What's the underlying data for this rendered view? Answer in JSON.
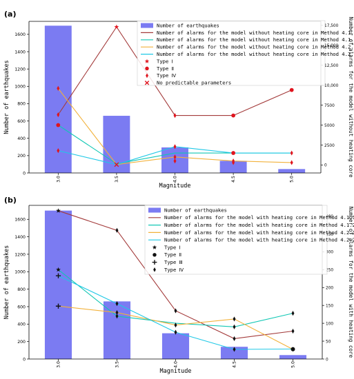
{
  "panels": [
    {
      "panel_label": "(a)",
      "chart_data": {
        "type": "bar",
        "categories": [
          "3.0",
          "3.5",
          "4.0",
          "4.5",
          "5.0"
        ],
        "xlabel": "Magnitude",
        "ylabel": "Number of earthquakes",
        "ylabel_right": "Number of alarms for the model without heating core",
        "ylim": [
          0,
          1750
        ],
        "yticks": [
          0,
          200,
          400,
          600,
          800,
          1000,
          1200,
          1400,
          1600
        ],
        "ylim_right": [
          -1000,
          18000
        ],
        "yticks_right": [
          0,
          2500,
          5000,
          7500,
          10000,
          12500,
          15000,
          17500
        ],
        "ytick_labels_right": [
          "0",
          "2500",
          "5000",
          "7500",
          "10,000",
          "12,500",
          "15,000",
          "17,500"
        ],
        "legend_position": "top-right",
        "bars": {
          "name": "Number of earthquakes",
          "values": [
            1700,
            660,
            295,
            140,
            45
          ],
          "color": "#7b7bf2"
        },
        "series": [
          {
            "name": "Number of alarms for the model without heating core in Method 4.1.1",
            "color": "#a33a3a",
            "values": [
              6300,
              17300,
              6200,
              6200,
              9400
            ]
          },
          {
            "name": "Number of alarms for the model without heating core in Method 4.1.2",
            "color": "#10c7b4",
            "values": [
              5000,
              150,
              1500,
              1500,
              1500
            ]
          },
          {
            "name": "Number of alarms for the model without heating core in Method 4.2.1",
            "color": "#f2b13a",
            "values": [
              9600,
              50,
              1000,
              500,
              300
            ]
          },
          {
            "name": "Number of alarms for the model without heating core in Method 4.2.2",
            "color": "#1ec8e6",
            "values": [
              1800,
              50,
              2300,
              1500,
              1500
            ]
          }
        ],
        "markers": [
          {
            "name": "Type Ⅰ",
            "symbol": "star",
            "color": "#e0141e"
          },
          {
            "name": "Type Ⅱ",
            "symbol": "circle",
            "color": "#e0141e"
          },
          {
            "name": "Type Ⅳ",
            "symbol": "diamond",
            "color": "#e0141e"
          },
          {
            "name": "No predictable parameters",
            "symbol": "x",
            "color": "#e0141e"
          }
        ],
        "points": [
          {
            "x": "3.0",
            "y": 6300,
            "symbol": "diamond"
          },
          {
            "x": "3.0",
            "y": 5000,
            "symbol": "circle"
          },
          {
            "x": "3.0",
            "y": 9600,
            "symbol": "diamond"
          },
          {
            "x": "3.0",
            "y": 1800,
            "symbol": "diamond"
          },
          {
            "x": "3.5",
            "y": 17300,
            "symbol": "star"
          },
          {
            "x": "3.5",
            "y": 50,
            "symbol": "x"
          },
          {
            "x": "4.0",
            "y": 6200,
            "symbol": "diamond"
          },
          {
            "x": "4.0",
            "y": 2300,
            "symbol": "diamond"
          },
          {
            "x": "4.0",
            "y": 1000,
            "symbol": "diamond"
          },
          {
            "x": "4.0",
            "y": 500,
            "symbol": "diamond"
          },
          {
            "x": "4.5",
            "y": 6200,
            "symbol": "circle"
          },
          {
            "x": "4.5",
            "y": 1500,
            "symbol": "circle"
          },
          {
            "x": "4.5",
            "y": 500,
            "symbol": "diamond"
          },
          {
            "x": "4.5",
            "y": 300,
            "symbol": "diamond"
          },
          {
            "x": "5.0",
            "y": 9400,
            "symbol": "circle"
          },
          {
            "x": "5.0",
            "y": 1500,
            "symbol": "diamond"
          },
          {
            "x": "5.0",
            "y": 300,
            "symbol": "diamond"
          }
        ]
      }
    },
    {
      "panel_label": "(b)",
      "chart_data": {
        "type": "bar",
        "categories": [
          "3.0",
          "3.5",
          "4.0",
          "4.5",
          "5.0"
        ],
        "xlabel": "Magnitude",
        "ylabel": "Number of earthquakes",
        "ylabel_right": "Number of alarms for the model with heating core",
        "ylim": [
          0,
          1760
        ],
        "yticks": [
          0,
          200,
          400,
          600,
          800,
          1000,
          1200,
          1400,
          1600
        ],
        "ylim_right": [
          0,
          430
        ],
        "yticks_right": [
          0,
          50,
          100,
          150,
          200,
          250,
          300,
          350,
          400
        ],
        "ytick_labels_right": [
          "0",
          "50",
          "100",
          "150",
          "200",
          "250",
          "300",
          "350",
          "400"
        ],
        "legend_position": "top-right",
        "bars": {
          "name": "Number of earthquakes",
          "values": [
            1700,
            660,
            295,
            140,
            45
          ],
          "color": "#7b7bf2"
        },
        "series": [
          {
            "name": "Number of alarms for the model with heating core in Method 4.1.1",
            "color": "#a33a3a",
            "values": [
              415,
              360,
              135,
              57,
              78
            ]
          },
          {
            "name": "Number of alarms for the model with heating core in Method 4.1.2",
            "color": "#10c7b4",
            "values": [
              250,
              120,
              100,
              90,
              128
            ]
          },
          {
            "name": "Number of alarms for the model with heating core in Method 4.2.1",
            "color": "#f2b13a",
            "values": [
              148,
              130,
              95,
              112,
              27
            ]
          },
          {
            "name": "Number of alarms for the model with heating core in Method 4.2.2",
            "color": "#1ec8e6",
            "values": [
              233,
              155,
              75,
              27,
              28
            ]
          }
        ],
        "markers": [
          {
            "name": "Type Ⅰ",
            "symbol": "star",
            "color": "#111111"
          },
          {
            "name": "Type Ⅱ",
            "symbol": "circle",
            "color": "#111111"
          },
          {
            "name": "Type Ⅲ",
            "symbol": "plus",
            "color": "#111111"
          },
          {
            "name": "Type Ⅳ",
            "symbol": "diamond",
            "color": "#111111"
          }
        ],
        "points": [
          {
            "x": "3.0",
            "y": 415,
            "symbol": "star"
          },
          {
            "x": "3.0",
            "y": 250,
            "symbol": "star"
          },
          {
            "x": "3.0",
            "y": 233,
            "symbol": "plus"
          },
          {
            "x": "3.0",
            "y": 148,
            "symbol": "plus"
          },
          {
            "x": "3.5",
            "y": 360,
            "symbol": "diamond"
          },
          {
            "x": "3.5",
            "y": 155,
            "symbol": "diamond"
          },
          {
            "x": "3.5",
            "y": 130,
            "symbol": "diamond"
          },
          {
            "x": "3.5",
            "y": 120,
            "symbol": "diamond"
          },
          {
            "x": "4.0",
            "y": 135,
            "symbol": "diamond"
          },
          {
            "x": "4.0",
            "y": 95,
            "symbol": "diamond"
          },
          {
            "x": "4.0",
            "y": 75,
            "symbol": "diamond"
          },
          {
            "x": "4.5",
            "y": 112,
            "symbol": "diamond"
          },
          {
            "x": "4.5",
            "y": 90,
            "symbol": "diamond"
          },
          {
            "x": "4.5",
            "y": 57,
            "symbol": "diamond"
          },
          {
            "x": "4.5",
            "y": 27,
            "symbol": "diamond"
          },
          {
            "x": "5.0",
            "y": 128,
            "symbol": "diamond"
          },
          {
            "x": "5.0",
            "y": 78,
            "symbol": "diamond"
          },
          {
            "x": "5.0",
            "y": 28,
            "symbol": "circle"
          },
          {
            "x": "5.0",
            "y": 27,
            "symbol": "circle"
          }
        ]
      }
    }
  ]
}
